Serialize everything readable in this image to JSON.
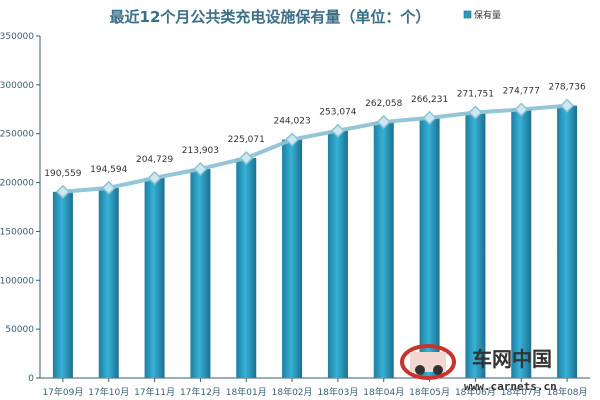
{
  "chart_data": {
    "type": "bar",
    "title": "最近12个月公共类充电设施保有量（单位：个）",
    "legend": {
      "label": "保有量",
      "placement": "top-right"
    },
    "categories": [
      "17年09月",
      "17年10月",
      "17年11月",
      "17年12月",
      "18年01月",
      "18年02月",
      "18年03月",
      "18年04月",
      "18年05月",
      "18年06月",
      "18年07月",
      "18年08月"
    ],
    "series": [
      {
        "name": "保有量",
        "values": [
          190559,
          194594,
          204729,
          213903,
          225071,
          244023,
          253074,
          262058,
          266231,
          271751,
          274777,
          278736
        ]
      }
    ],
    "data_labels": [
      "190,559",
      "194,594",
      "204,729",
      "213,903",
      "225,071",
      "244,023",
      "253,074",
      "262,058",
      "266,231",
      "271,751",
      "274,777",
      "278,736"
    ],
    "overlay_line": true,
    "ylim": [
      0,
      350000
    ],
    "yticks": [
      0,
      50000,
      100000,
      150000,
      200000,
      250000,
      300000,
      350000
    ],
    "ytick_labels": [
      "0",
      "50000",
      "100000",
      "150000",
      "200000",
      "250000",
      "300000",
      "350000"
    ],
    "grid": false,
    "colors": {
      "bar": "#2b9bbf",
      "bar_dark": "#1d6f8e",
      "line": "#8ec3d6",
      "axis": "#3a5f73"
    }
  },
  "watermark": {
    "brand": "车网中国",
    "url": "www.carnets.cn"
  }
}
